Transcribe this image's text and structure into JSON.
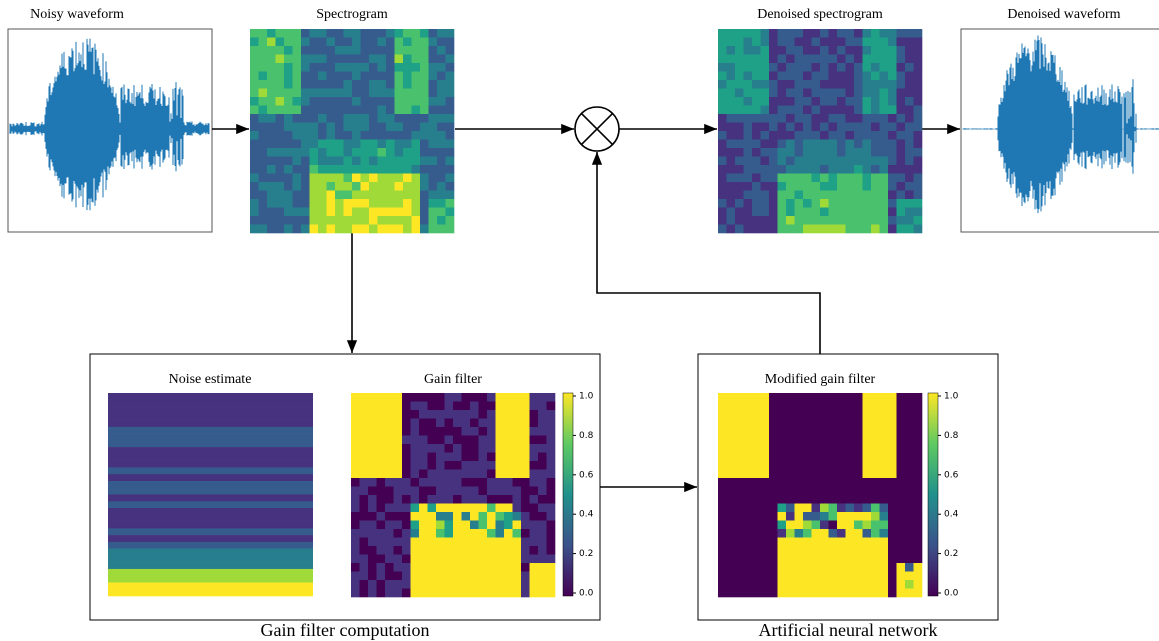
{
  "labels": {
    "noisy_waveform": "Noisy waveform",
    "spectrogram": "Spectrogram",
    "denoised_spectrogram": "Denoised spectrogram",
    "denoised_waveform": "Denoised waveform",
    "noise_estimate": "Noise estimate",
    "gain_filter": "Gain filter",
    "modified_gain_filter": "Modified gain filter",
    "gain_filter_computation": "Gain filter computation",
    "artificial_neural_network": "Artificial neural network"
  },
  "colorbar_ticks": [
    "1.0",
    "0.8",
    "0.6",
    "0.4",
    "0.2",
    "0.0"
  ]
}
